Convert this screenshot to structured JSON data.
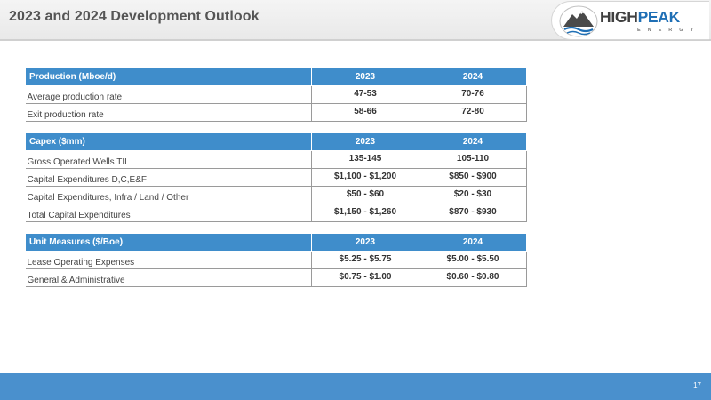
{
  "header": {
    "title": "2023 and 2024 Development Outlook",
    "logo": {
      "word_a": "HIGH",
      "word_b": "PEAK",
      "sub": "ENERGY",
      "icon": "mountain-logo-icon"
    }
  },
  "tables": {
    "production": {
      "header": [
        "Production (Mboe/d)",
        "2023",
        "2024"
      ],
      "rows": [
        [
          "Average production rate",
          "47-53",
          "70-76"
        ],
        [
          "Exit production rate",
          "58-66",
          "72-80"
        ]
      ]
    },
    "capex": {
      "header": [
        "Capex ($mm)",
        "2023",
        "2024"
      ],
      "rows": [
        [
          "Gross Operated Wells TIL",
          "135-145",
          "105-110"
        ],
        [
          "Capital Expenditures D,C,E&F",
          "$1,100 - $1,200",
          "$850 - $900"
        ],
        [
          "Capital Expenditures, Infra / Land / Other",
          "$50 - $60",
          "$20 - $30"
        ],
        [
          "Total Capital Expenditures",
          "$1,150 - $1,260",
          "$870 - $930"
        ]
      ]
    },
    "unit_measures": {
      "header": [
        "Unit Measures ($/Boe)",
        "2023",
        "2024"
      ],
      "rows": [
        [
          "Lease Operating Expenses",
          "$5.25 - $5.75",
          "$5.00 - $5.50"
        ],
        [
          "General & Administrative",
          "$0.75 - $1.00",
          "$0.60 - $0.80"
        ]
      ]
    }
  },
  "footer": {
    "page_number": "17"
  },
  "colors": {
    "header_blue": "#3f8dcb",
    "footer_blue": "#4a90cd",
    "brand_blue": "#1f6fb5"
  }
}
